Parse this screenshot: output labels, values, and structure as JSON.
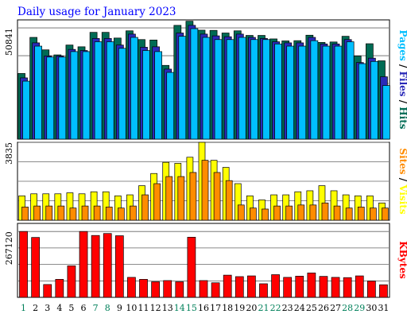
{
  "chart_data": [
    {
      "type": "bar",
      "title": "Daily usage for January 2023",
      "categories": [
        "1",
        "2",
        "3",
        "4",
        "5",
        "6",
        "7",
        "8",
        "9",
        "10",
        "11",
        "12",
        "13",
        "14",
        "15",
        "16",
        "17",
        "18",
        "19",
        "20",
        "21",
        "22",
        "23",
        "24",
        "25",
        "26",
        "27",
        "28",
        "29",
        "30",
        "31"
      ],
      "weekend_days": [
        "1",
        "7",
        "8",
        "14",
        "15",
        "21",
        "22",
        "28",
        "29"
      ],
      "y_tick_label": "50841",
      "ylim": [
        0,
        54500
      ],
      "series": [
        {
          "name": "Hits",
          "color": "#006b54",
          "values": [
            30000,
            46500,
            40800,
            38500,
            43000,
            42200,
            48800,
            48800,
            46200,
            49500,
            45500,
            45300,
            33700,
            52000,
            53900,
            49800,
            49700,
            48500,
            49500,
            47400,
            47400,
            45800,
            44900,
            45000,
            47500,
            44200,
            44400,
            47000,
            38000,
            43600,
            35800
          ]
        },
        {
          "name": "Files",
          "color": "#2a2ab8",
          "values": [
            28000,
            44000,
            38000,
            38000,
            41000,
            40500,
            46000,
            46000,
            43000,
            48000,
            42000,
            42200,
            32000,
            48500,
            52000,
            48000,
            47200,
            46800,
            48000,
            46500,
            46000,
            44500,
            44000,
            44000,
            46500,
            43500,
            43500,
            45500,
            35000,
            37000,
            28500
          ]
        },
        {
          "name": "Pages",
          "color": "#00bfff",
          "values": [
            26500,
            42500,
            37500,
            37500,
            40000,
            40000,
            44500,
            44500,
            41500,
            46500,
            40500,
            40000,
            30500,
            47000,
            50500,
            46500,
            45500,
            45500,
            46500,
            45500,
            45500,
            43500,
            42500,
            42500,
            45000,
            42500,
            42500,
            44500,
            34500,
            35500,
            24500
          ]
        }
      ]
    },
    {
      "type": "bar",
      "categories": [
        "1",
        "2",
        "3",
        "4",
        "5",
        "6",
        "7",
        "8",
        "9",
        "10",
        "11",
        "12",
        "13",
        "14",
        "15",
        "16",
        "17",
        "18",
        "19",
        "20",
        "21",
        "22",
        "23",
        "24",
        "25",
        "26",
        "27",
        "28",
        "29",
        "30",
        "31"
      ],
      "y_tick_label": "3835",
      "ylim": [
        0,
        3835
      ],
      "series": [
        {
          "name": "Visits",
          "color": "#ffff00",
          "values": [
            1200,
            1300,
            1300,
            1300,
            1350,
            1300,
            1400,
            1400,
            1200,
            1250,
            1700,
            2300,
            2850,
            2800,
            3100,
            3835,
            2950,
            2600,
            1800,
            1200,
            1000,
            1250,
            1250,
            1400,
            1450,
            1700,
            1450,
            1250,
            1200,
            1200,
            850
          ]
        },
        {
          "name": "Sites",
          "color": "#ff8c00",
          "values": [
            650,
            700,
            700,
            700,
            600,
            700,
            700,
            650,
            600,
            700,
            1250,
            1800,
            2150,
            2150,
            2350,
            2950,
            2350,
            1950,
            750,
            600,
            550,
            700,
            700,
            750,
            750,
            850,
            700,
            600,
            650,
            600,
            600
          ]
        }
      ]
    },
    {
      "type": "bar",
      "categories": [
        "1",
        "2",
        "3",
        "4",
        "5",
        "6",
        "7",
        "8",
        "9",
        "10",
        "11",
        "12",
        "13",
        "14",
        "15",
        "16",
        "17",
        "18",
        "19",
        "20",
        "21",
        "22",
        "23",
        "24",
        "25",
        "26",
        "27",
        "28",
        "29",
        "30",
        "31"
      ],
      "y_tick_label": "267120",
      "ylim": [
        0,
        300000
      ],
      "series": [
        {
          "name": "KBytes",
          "color": "#ff0000",
          "values": [
            267120,
            243000,
            52000,
            73000,
            128000,
            267120,
            251000,
            259000,
            250000,
            81000,
            73000,
            63000,
            68000,
            63000,
            244000,
            68000,
            59000,
            90000,
            84000,
            87000,
            55000,
            92000,
            81000,
            86000,
            99000,
            85000,
            81000,
            80000,
            87000,
            66000,
            51000
          ]
        }
      ]
    }
  ]
}
